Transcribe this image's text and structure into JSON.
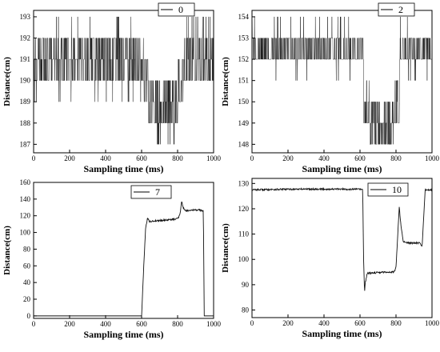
{
  "chart_data": [
    {
      "type": "line",
      "legend": {
        "label": "0",
        "position": "top-right"
      },
      "xlabel": "Sampling time (ms)",
      "ylabel": "Distance(cm)",
      "xlim": [
        0,
        1000
      ],
      "ylim": [
        186.6,
        193.3
      ],
      "x_ticks": [
        0,
        200,
        400,
        600,
        800,
        1000
      ],
      "y_ticks": [
        187,
        188,
        189,
        190,
        191,
        192,
        193
      ],
      "grid": false,
      "pattern": "discrete noisy signal, 1 ms samples",
      "segments": [
        {
          "x_start": 0,
          "x_end": 610,
          "dominant": [
            190,
            191,
            192
          ],
          "occasional": [
            189,
            193
          ]
        },
        {
          "x_start": 610,
          "x_end": 635,
          "dominant": [
            189,
            190,
            191
          ],
          "occasional": []
        },
        {
          "x_start": 635,
          "x_end": 800,
          "dominant": [
            188,
            189,
            190
          ],
          "occasional": [
            187
          ]
        },
        {
          "x_start": 800,
          "x_end": 830,
          "dominant": [
            189,
            190,
            191
          ],
          "occasional": []
        },
        {
          "x_start": 830,
          "x_end": 1000,
          "dominant": [
            190,
            191,
            192
          ],
          "occasional": [
            193
          ]
        }
      ]
    },
    {
      "type": "line",
      "legend": {
        "label": "2",
        "position": "top-right"
      },
      "xlabel": "Sampling time (ms)",
      "ylabel": "Distance(cm)",
      "xlim": [
        0,
        1000
      ],
      "ylim": [
        147.6,
        154.3
      ],
      "x_ticks": [
        0,
        200,
        400,
        600,
        800,
        1000
      ],
      "y_ticks": [
        148,
        149,
        150,
        151,
        152,
        153,
        154
      ],
      "grid": false,
      "pattern": "discrete noisy signal, 1 ms samples",
      "segments": [
        {
          "x_start": 0,
          "x_end": 620,
          "dominant": [
            152,
            153
          ],
          "occasional": [
            151,
            154
          ]
        },
        {
          "x_start": 620,
          "x_end": 650,
          "dominant": [
            149,
            150,
            151
          ],
          "occasional": []
        },
        {
          "x_start": 650,
          "x_end": 790,
          "dominant": [
            148,
            149,
            150
          ],
          "occasional": []
        },
        {
          "x_start": 790,
          "x_end": 820,
          "dominant": [
            149,
            150,
            151
          ],
          "occasional": []
        },
        {
          "x_start": 820,
          "x_end": 1000,
          "dominant": [
            152,
            153
          ],
          "occasional": [
            151,
            154
          ]
        }
      ]
    },
    {
      "type": "line",
      "legend": {
        "label": "7",
        "position": "top-right"
      },
      "xlabel": "Sampling time (ms)",
      "ylabel": "Distance(cm)",
      "xlim": [
        0,
        1000
      ],
      "ylim": [
        -3,
        160
      ],
      "x_ticks": [
        0,
        200,
        400,
        600,
        800,
        1000
      ],
      "y_ticks": [
        0,
        20,
        40,
        60,
        80,
        100,
        120,
        140,
        160
      ],
      "grid": false,
      "points": [
        [
          0,
          0
        ],
        [
          600,
          0
        ],
        [
          612,
          60
        ],
        [
          622,
          104
        ],
        [
          632,
          117
        ],
        [
          645,
          113
        ],
        [
          680,
          114
        ],
        [
          740,
          115
        ],
        [
          790,
          116
        ],
        [
          805,
          118
        ],
        [
          815,
          124
        ],
        [
          823,
          138
        ],
        [
          830,
          130
        ],
        [
          845,
          126
        ],
        [
          880,
          127
        ],
        [
          920,
          127
        ],
        [
          943,
          126
        ],
        [
          948,
          0
        ],
        [
          1000,
          0
        ]
      ]
    },
    {
      "type": "line",
      "legend": {
        "label": "10",
        "position": "top-right"
      },
      "xlabel": "Sampling time (ms)",
      "ylabel": "Distance(cm)",
      "xlim": [
        0,
        1000
      ],
      "ylim": [
        77,
        132
      ],
      "x_ticks": [
        0,
        200,
        400,
        600,
        800,
        1000
      ],
      "y_ticks": [
        80,
        90,
        100,
        110,
        120,
        130
      ],
      "grid": false,
      "points": [
        [
          0,
          127.5
        ],
        [
          300,
          127.8
        ],
        [
          615,
          127.7
        ],
        [
          620,
          100
        ],
        [
          625,
          87
        ],
        [
          630,
          91
        ],
        [
          640,
          94.5
        ],
        [
          700,
          94.8
        ],
        [
          750,
          95
        ],
        [
          790,
          95
        ],
        [
          800,
          97
        ],
        [
          810,
          110
        ],
        [
          818,
          121
        ],
        [
          825,
          115
        ],
        [
          840,
          107
        ],
        [
          870,
          106.5
        ],
        [
          930,
          106.5
        ],
        [
          945,
          105
        ],
        [
          955,
          118
        ],
        [
          962,
          127.5
        ],
        [
          1000,
          127.5
        ]
      ]
    }
  ]
}
